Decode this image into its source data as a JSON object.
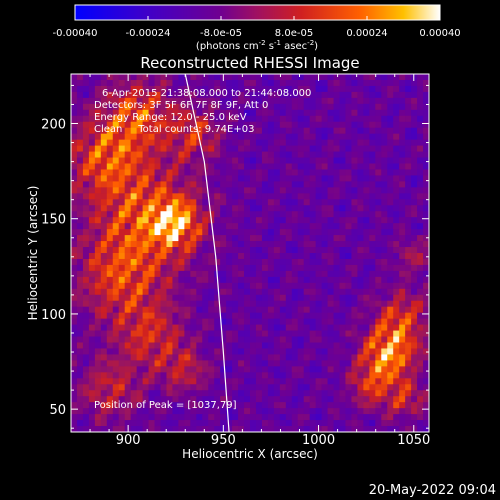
{
  "chart_data": {
    "type": "heatmap",
    "title": "Reconstructed RHESSI Image",
    "xlabel": "Heliocentric X (arcsec)",
    "ylabel": "Heliocentric Y (arcsec)",
    "xlim": [
      870,
      1058
    ],
    "ylim": [
      38,
      226
    ],
    "x_ticks": [
      900,
      950,
      1000,
      1050
    ],
    "y_ticks": [
      50,
      100,
      150,
      200
    ],
    "colorbar": {
      "range": [
        -0.0004,
        0.0004
      ],
      "tick_values": [
        -0.0004,
        -0.00024,
        -8e-05,
        8e-05,
        0.00024,
        0.0004
      ],
      "tick_labels": [
        "-0.00040",
        "-0.00024",
        "-8.0e-05",
        "8.0e-05",
        "0.00024",
        "0.00040"
      ],
      "unit_label_main": "(photons cm",
      "unit_sup1": "-2",
      "unit_mid1": " s",
      "unit_sup2": "-1",
      "unit_mid2": " asec",
      "unit_sup3": "-2",
      "unit_end": ")"
    },
    "info_lines": [
      "6-Apr-2015 21:38:08.000 to 21:44:08.000",
      "Detectors: 3F 5F 6F 7F 8F 9F, Att 0",
      "Energy Range: 12.0 - 25.0 keV",
      "Clean     Total counts: 9.74E+03"
    ],
    "peak_text": "Position of Peak = [1037,79]",
    "peak_position": [
      1037,
      79
    ],
    "limb_curve": [
      [
        930,
        226
      ],
      [
        940,
        180
      ],
      [
        946,
        130
      ],
      [
        950,
        80
      ],
      [
        953,
        38
      ]
    ],
    "emission_regions": [
      {
        "x": 1037,
        "y": 79,
        "intensity": 1.0,
        "radius": 14
      },
      {
        "x": 1044,
        "y": 98,
        "intensity": 0.6,
        "radius": 14
      },
      {
        "x": 1028,
        "y": 62,
        "intensity": 0.55,
        "radius": 12
      },
      {
        "x": 910,
        "y": 150,
        "intensity": 0.75,
        "radius": 28
      },
      {
        "x": 925,
        "y": 148,
        "intensity": 0.8,
        "radius": 12
      },
      {
        "x": 888,
        "y": 182,
        "intensity": 0.7,
        "radius": 20
      },
      {
        "x": 905,
        "y": 205,
        "intensity": 0.7,
        "radius": 18
      },
      {
        "x": 935,
        "y": 195,
        "intensity": 0.55,
        "radius": 14
      },
      {
        "x": 895,
        "y": 118,
        "intensity": 0.6,
        "radius": 22
      },
      {
        "x": 912,
        "y": 88,
        "intensity": 0.55,
        "radius": 18
      },
      {
        "x": 930,
        "y": 70,
        "intensity": 0.45,
        "radius": 12
      },
      {
        "x": 890,
        "y": 60,
        "intensity": 0.5,
        "radius": 16
      },
      {
        "x": 1046,
        "y": 55,
        "intensity": 0.5,
        "radius": 10
      },
      {
        "x": 1050,
        "y": 130,
        "intensity": 0.35,
        "radius": 10
      }
    ]
  },
  "footer": {
    "timestamp": "20-May-2022 09:04"
  }
}
